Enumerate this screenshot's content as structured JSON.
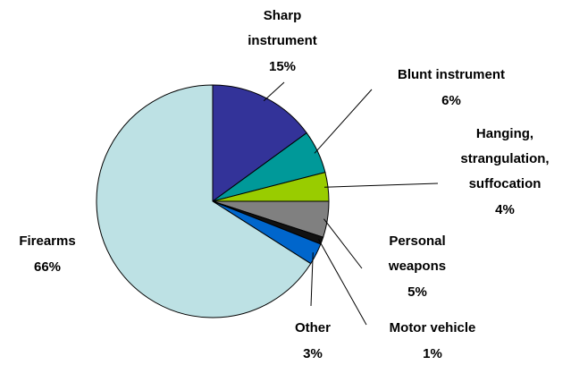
{
  "chart_data": {
    "type": "pie",
    "categories": [
      "Sharp instrument",
      "Blunt instrument",
      "Hanging, strangulation, suffocation",
      "Personal weapons",
      "Motor vehicle",
      "Other",
      "Firearms"
    ],
    "values": [
      15,
      6,
      4,
      5,
      1,
      3,
      66
    ],
    "value_labels": [
      "15%",
      "6%",
      "4%",
      "5%",
      "1%",
      "3%",
      "66%"
    ],
    "colors": [
      "#333399",
      "#009999",
      "#99cc00",
      "#808080",
      "#111111",
      "#0066cc",
      "#bde1e4"
    ]
  }
}
